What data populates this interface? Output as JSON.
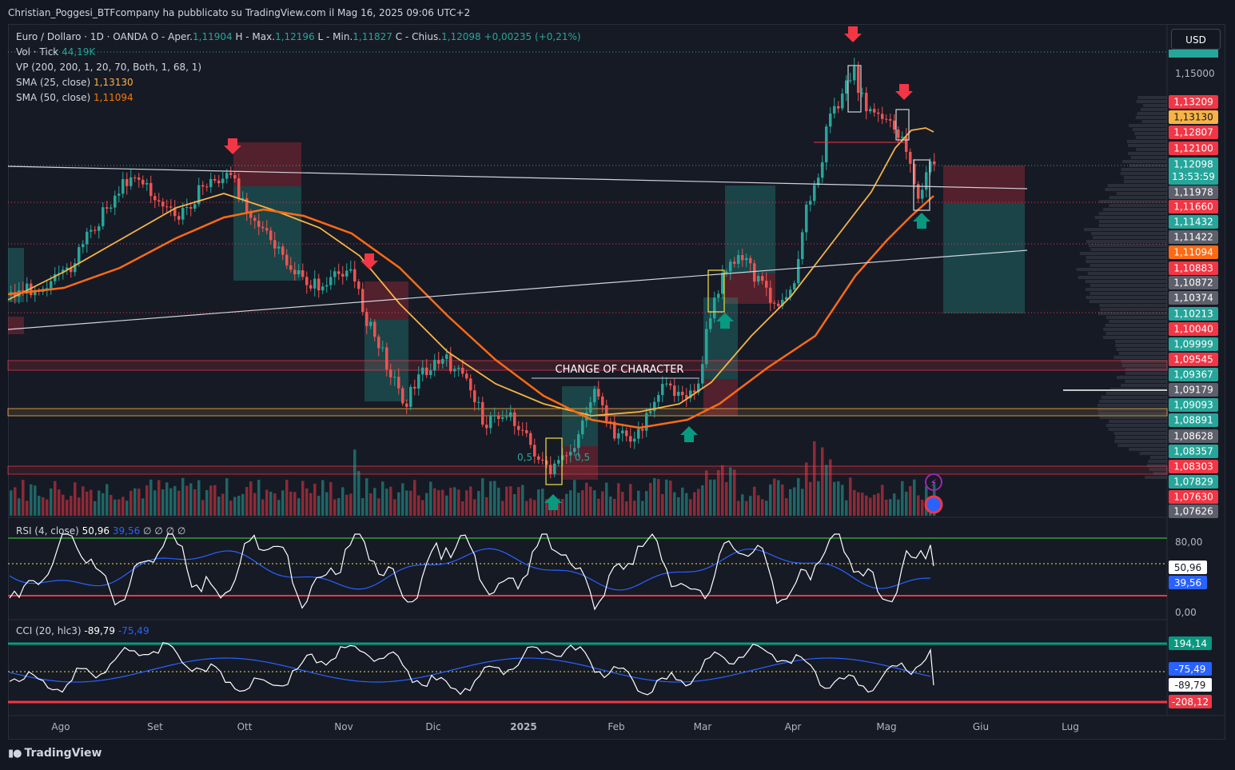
{
  "header": {
    "publisher_line": "Christian_Poggesi_BTFcompany ha pubblicato su TradingView.com il Mag 16, 2025 09:06 UTC+2"
  },
  "symbol": {
    "name": "Euro / Dollaro · 1D · OANDA",
    "open_label": "O - Aper.",
    "open": "1,11904",
    "high_label": "H - Max.",
    "high": "1,12196",
    "low_label": "L - Min.",
    "low": "1,11827",
    "close_label": "C - Chius.",
    "close": "1,12098",
    "change": "+0,00235 (+0,21%)"
  },
  "indicators": {
    "vol_label": "Vol · Tick",
    "vol_value": "44,19K",
    "vp_label": "VP (200, 200, 1, 20, 70, Both, 1, 68, 1)",
    "sma25_label": "SMA (25, close)",
    "sma25_value": "1,13130",
    "sma50_label": "SMA (50, close)",
    "sma50_value": "1,11094"
  },
  "currency_button": "USD",
  "annotations": {
    "choch": "CHANGE OF CHARACTER",
    "fib_left": "0,5",
    "fib_right": "0,5"
  },
  "rsi": {
    "label": "RSI (4, close)",
    "value": "50,96",
    "ma_value": "39,56",
    "extra": "∅ ∅ ∅ ∅",
    "scale": [
      "80,00",
      "0,00"
    ]
  },
  "cci": {
    "label": "CCI (20, hlc3)",
    "value": "-89,79",
    "ma_value": "-75,49"
  },
  "brand": "TradingView",
  "colors": {
    "bg": "#131722",
    "up": "#26a69a",
    "down": "#ef5350",
    "sma25": "#f7b345",
    "sma50": "#ff6a13",
    "rsi_ma": "#2962ff"
  },
  "chart_data": {
    "type": "line",
    "title": "Euro / Dollaro · 1D · OANDA",
    "x_ticks": [
      "Ago",
      "Set",
      "Ott",
      "Nov",
      "Dic",
      "2025",
      "Feb",
      "Mar",
      "Apr",
      "Mag",
      "Giu",
      "Lug"
    ],
    "y_ticks": [
      "1,15000"
    ],
    "price_labels": [
      {
        "text": "1,13209",
        "color": "#f23645"
      },
      {
        "text": "1,13130",
        "color": "#f7b345"
      },
      {
        "text": "1,12807",
        "color": "#f23645"
      },
      {
        "text": "1,12100",
        "color": "#f23645"
      },
      {
        "text": "1,12098",
        "sub": "13:53:59",
        "color": "#26a69a"
      },
      {
        "text": "1,11978",
        "color": "#5d606b"
      },
      {
        "text": "1,11660",
        "color": "#f23645"
      },
      {
        "text": "1,11432",
        "color": "#26a69a"
      },
      {
        "text": "1,11422",
        "color": "#5d606b"
      },
      {
        "text": "1,11094",
        "color": "#ff6a13"
      },
      {
        "text": "1,10883",
        "color": "#f23645"
      },
      {
        "text": "1,10872",
        "color": "#5d606b"
      },
      {
        "text": "1,10374",
        "color": "#5d606b"
      },
      {
        "text": "1,10213",
        "color": "#26a69a"
      },
      {
        "text": "1,10040",
        "color": "#f23645"
      },
      {
        "text": "1,09999",
        "color": "#26a69a"
      },
      {
        "text": "1,09545",
        "color": "#f23645"
      },
      {
        "text": "1,09367",
        "color": "#26a69a"
      },
      {
        "text": "1,09179",
        "color": "#5d606b"
      },
      {
        "text": "1,09093",
        "color": "#26a69a"
      },
      {
        "text": "1,08891",
        "color": "#26a69a"
      },
      {
        "text": "1,08628",
        "color": "#5d606b"
      },
      {
        "text": "1,08357",
        "color": "#26a69a"
      },
      {
        "text": "1,08303",
        "color": "#f23645"
      },
      {
        "text": "1,07829",
        "color": "#26a69a"
      },
      {
        "text": "1,07630",
        "color": "#f23645"
      },
      {
        "text": "1,07626",
        "color": "#5d606b"
      }
    ],
    "rsi_labels": [
      {
        "text": "50,96",
        "color": "#ffffff",
        "fg": "#131722"
      },
      {
        "text": "39,56",
        "color": "#2962ff",
        "fg": "#ffffff"
      }
    ],
    "cci_labels": [
      {
        "text": "194,14",
        "color": "#089981",
        "fg": "#ffffff"
      },
      {
        "text": "-75,49",
        "color": "#2962ff",
        "fg": "#ffffff"
      },
      {
        "text": "-89,79",
        "color": "#ffffff",
        "fg": "#131722"
      },
      {
        "text": "-208,12",
        "color": "#f23645",
        "fg": "#ffffff"
      }
    ],
    "series": [
      {
        "name": "SMA (25, close)",
        "color": "#f7b345"
      },
      {
        "name": "SMA (50, close)",
        "color": "#ff6a13"
      }
    ]
  }
}
